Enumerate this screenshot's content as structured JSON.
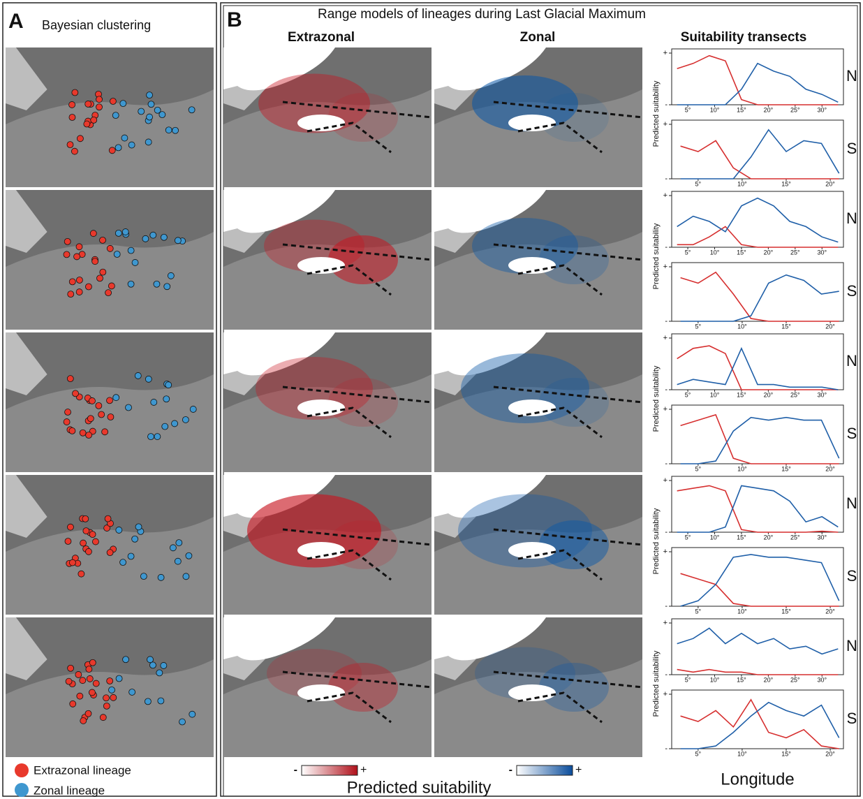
{
  "panel_a": {
    "letter": "A",
    "title": "Bayesian clustering",
    "legend": [
      {
        "label": "Extrazonal lineage",
        "color": "#e8392c"
      },
      {
        "label": "Zonal lineage",
        "color": "#3f97cf"
      }
    ]
  },
  "panel_b": {
    "letter": "B",
    "title": "Range models of lineages during Last Glacial Maximum",
    "columns": [
      "Extrazonal",
      "Zonal"
    ],
    "colorbar": {
      "low": "-",
      "high": "+",
      "label": "Predicted suitability"
    }
  },
  "chart_data": {
    "type": "line",
    "title": "Suitability transects",
    "y_label": "Predicted suitability",
    "x_label": "Longitude",
    "ylim": [
      0,
      1
    ],
    "yticks": [
      {
        "value": 0,
        "label": "-"
      },
      {
        "value": 1,
        "label": "+"
      }
    ],
    "transects": [
      {
        "label": "N",
        "xlim": [
          2,
          34
        ],
        "xticks": [
          {
            "value": 5,
            "label": "5°"
          },
          {
            "value": 10,
            "label": "10°"
          },
          {
            "value": 15,
            "label": "15°"
          },
          {
            "value": 20,
            "label": "20°"
          },
          {
            "value": 25,
            "label": "25°"
          },
          {
            "value": 30,
            "label": "30°"
          }
        ],
        "x": [
          3,
          6,
          9,
          12,
          15,
          18,
          21,
          24,
          27,
          30,
          33
        ],
        "series": [
          {
            "color": "#d62f2f",
            "values": [
              0.7,
              0.8,
              0.95,
              0.85,
              0.1,
              0,
              0,
              0,
              0,
              0,
              0
            ]
          },
          {
            "color": "#1f5fa8",
            "values": [
              0,
              0,
              0,
              0,
              0.3,
              0.8,
              0.65,
              0.55,
              0.3,
              0.2,
              0.05
            ]
          }
        ]
      },
      {
        "label": "S",
        "xlim": [
          2,
          21.5
        ],
        "xticks": [
          {
            "value": 5,
            "label": "5°"
          },
          {
            "value": 10,
            "label": "10°"
          },
          {
            "value": 15,
            "label": "15°"
          },
          {
            "value": 20,
            "label": "20°"
          }
        ],
        "x": [
          3,
          5,
          7,
          9,
          11,
          13,
          15,
          17,
          19,
          21
        ],
        "series": [
          {
            "color": "#d62f2f",
            "values": [
              0.6,
              0.5,
              0.7,
              0.2,
              0,
              0,
              0,
              0,
              0,
              0
            ]
          },
          {
            "color": "#1f5fa8",
            "values": [
              0,
              0,
              0,
              0,
              0.4,
              0.9,
              0.5,
              0.7,
              0.65,
              0.1
            ]
          }
        ]
      },
      {
        "label": "N",
        "xlim": [
          2,
          34
        ],
        "xticks": [
          {
            "value": 5,
            "label": "5°"
          },
          {
            "value": 10,
            "label": "10°"
          },
          {
            "value": 15,
            "label": "15°"
          },
          {
            "value": 20,
            "label": "20°"
          },
          {
            "value": 25,
            "label": "25°"
          },
          {
            "value": 30,
            "label": "30°"
          }
        ],
        "x": [
          3,
          6,
          9,
          12,
          15,
          18,
          21,
          24,
          27,
          30,
          33
        ],
        "series": [
          {
            "color": "#d62f2f",
            "values": [
              0.05,
              0.05,
              0.2,
              0.4,
              0.05,
              0,
              0,
              0,
              0,
              0,
              0
            ]
          },
          {
            "color": "#1f5fa8",
            "values": [
              0.4,
              0.6,
              0.5,
              0.3,
              0.8,
              0.95,
              0.8,
              0.5,
              0.4,
              0.2,
              0.1
            ]
          }
        ]
      },
      {
        "label": "S",
        "xlim": [
          2,
          21.5
        ],
        "xticks": [
          {
            "value": 5,
            "label": "5°"
          },
          {
            "value": 10,
            "label": "10°"
          },
          {
            "value": 15,
            "label": "15°"
          },
          {
            "value": 20,
            "label": "20°"
          }
        ],
        "x": [
          3,
          5,
          7,
          9,
          11,
          13,
          15,
          17,
          19,
          21
        ],
        "series": [
          {
            "color": "#d62f2f",
            "values": [
              0.8,
              0.7,
              0.9,
              0.5,
              0.05,
              0,
              0,
              0,
              0,
              0
            ]
          },
          {
            "color": "#1f5fa8",
            "values": [
              0,
              0,
              0,
              0,
              0.1,
              0.7,
              0.85,
              0.75,
              0.5,
              0.55
            ]
          }
        ]
      },
      {
        "label": "N",
        "xlim": [
          2,
          34
        ],
        "xticks": [
          {
            "value": 5,
            "label": "5°"
          },
          {
            "value": 10,
            "label": "10°"
          },
          {
            "value": 15,
            "label": "15°"
          },
          {
            "value": 20,
            "label": "20°"
          },
          {
            "value": 25,
            "label": "25°"
          },
          {
            "value": 30,
            "label": "30°"
          }
        ],
        "x": [
          3,
          6,
          9,
          12,
          15,
          18,
          21,
          24,
          27,
          30,
          33
        ],
        "series": [
          {
            "color": "#d62f2f",
            "values": [
              0.6,
              0.8,
              0.85,
              0.7,
              0,
              0,
              0,
              0,
              0,
              0,
              0
            ]
          },
          {
            "color": "#1f5fa8",
            "values": [
              0.1,
              0.2,
              0.15,
              0.1,
              0.8,
              0.1,
              0.1,
              0.05,
              0.05,
              0.05,
              0
            ]
          }
        ]
      },
      {
        "label": "S",
        "xlim": [
          2,
          21.5
        ],
        "xticks": [
          {
            "value": 5,
            "label": "5°"
          },
          {
            "value": 10,
            "label": "10°"
          },
          {
            "value": 15,
            "label": "15°"
          },
          {
            "value": 20,
            "label": "20°"
          }
        ],
        "x": [
          3,
          5,
          7,
          9,
          11,
          13,
          15,
          17,
          19,
          21
        ],
        "series": [
          {
            "color": "#d62f2f",
            "values": [
              0.7,
              0.8,
              0.9,
              0.1,
              0,
              0,
              0,
              0,
              0,
              0
            ]
          },
          {
            "color": "#1f5fa8",
            "values": [
              0,
              0,
              0.05,
              0.6,
              0.85,
              0.8,
              0.85,
              0.8,
              0.8,
              0.1
            ]
          }
        ]
      },
      {
        "label": "N",
        "xlim": [
          2,
          34
        ],
        "xticks": [
          {
            "value": 5,
            "label": "5°"
          },
          {
            "value": 10,
            "label": "10°"
          },
          {
            "value": 15,
            "label": "15°"
          },
          {
            "value": 20,
            "label": "20°"
          },
          {
            "value": 25,
            "label": "25°"
          },
          {
            "value": 30,
            "label": "30°"
          }
        ],
        "x": [
          3,
          6,
          9,
          12,
          15,
          18,
          21,
          24,
          27,
          30,
          33
        ],
        "series": [
          {
            "color": "#d62f2f",
            "values": [
              0.8,
              0.85,
              0.9,
              0.8,
              0.05,
              0,
              0,
              0,
              0,
              0.02,
              0
            ]
          },
          {
            "color": "#1f5fa8",
            "values": [
              0,
              0,
              0,
              0.1,
              0.9,
              0.85,
              0.8,
              0.6,
              0.2,
              0.3,
              0.1
            ]
          }
        ]
      },
      {
        "label": "S",
        "xlim": [
          2,
          21.5
        ],
        "xticks": [
          {
            "value": 5,
            "label": "5°"
          },
          {
            "value": 10,
            "label": "10°"
          },
          {
            "value": 15,
            "label": "15°"
          },
          {
            "value": 20,
            "label": "20°"
          }
        ],
        "x": [
          3,
          5,
          7,
          9,
          11,
          13,
          15,
          17,
          19,
          21
        ],
        "series": [
          {
            "color": "#d62f2f",
            "values": [
              0.6,
              0.5,
              0.4,
              0.05,
              0,
              0,
              0,
              0,
              0,
              0
            ]
          },
          {
            "color": "#1f5fa8",
            "values": [
              0,
              0.1,
              0.4,
              0.9,
              0.95,
              0.9,
              0.9,
              0.85,
              0.8,
              0.1
            ]
          }
        ]
      },
      {
        "label": "N",
        "xlim": [
          2,
          34
        ],
        "xticks": [
          {
            "value": 5,
            "label": "5°"
          },
          {
            "value": 10,
            "label": "10°"
          },
          {
            "value": 15,
            "label": "15°"
          },
          {
            "value": 20,
            "label": "20°"
          },
          {
            "value": 25,
            "label": "25°"
          },
          {
            "value": 30,
            "label": "30°"
          }
        ],
        "x": [
          3,
          6,
          9,
          12,
          15,
          18,
          21,
          24,
          27,
          30,
          33
        ],
        "series": [
          {
            "color": "#d62f2f",
            "values": [
              0.1,
              0.05,
              0.1,
              0.05,
              0.05,
              0,
              0,
              0,
              0,
              0,
              0
            ]
          },
          {
            "color": "#1f5fa8",
            "values": [
              0.6,
              0.7,
              0.9,
              0.6,
              0.8,
              0.6,
              0.7,
              0.5,
              0.55,
              0.4,
              0.5
            ]
          }
        ]
      },
      {
        "label": "S",
        "xlim": [
          2,
          21.5
        ],
        "xticks": [
          {
            "value": 5,
            "label": "5°"
          },
          {
            "value": 10,
            "label": "10°"
          },
          {
            "value": 15,
            "label": "15°"
          },
          {
            "value": 20,
            "label": "20°"
          }
        ],
        "x": [
          3,
          5,
          7,
          9,
          11,
          13,
          15,
          17,
          19,
          21
        ],
        "series": [
          {
            "color": "#d62f2f",
            "values": [
              0.6,
              0.5,
              0.7,
              0.4,
              0.9,
              0.3,
              0.2,
              0.35,
              0.05,
              0
            ]
          },
          {
            "color": "#1f5fa8",
            "values": [
              0,
              0,
              0.05,
              0.3,
              0.6,
              0.85,
              0.7,
              0.6,
              0.8,
              0.2
            ]
          }
        ]
      }
    ]
  }
}
